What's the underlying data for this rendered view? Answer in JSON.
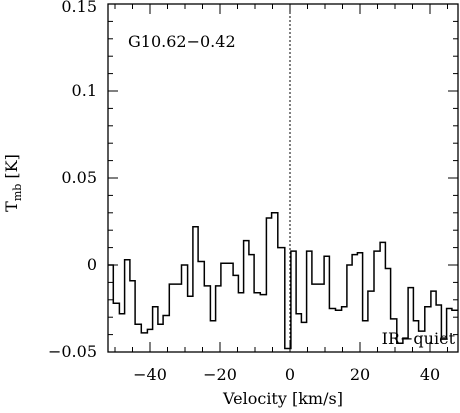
{
  "chart_data": {
    "type": "line",
    "step": true,
    "title": "",
    "xlabel": "Velocity [km/s]",
    "ylabel_main": "T",
    "ylabel_sub": "mb",
    "ylabel_unit": "[K]",
    "xlim": [
      -52,
      48
    ],
    "ylim": [
      -0.05,
      0.15
    ],
    "xticks": [
      -40,
      -20,
      0,
      20,
      40
    ],
    "xtick_labels": [
      "−40",
      "−20",
      "0",
      "20",
      "40"
    ],
    "yticks": [
      -0.05,
      0,
      0.05,
      0.1,
      0.15
    ],
    "ytick_labels": [
      "−0.05",
      "0",
      "0.05",
      "0.1",
      "0.15"
    ],
    "annotations": {
      "source_name": "G10.62−0.42",
      "classification": "IR−quiet"
    },
    "reference_line_x": 0,
    "series": [
      {
        "x": [
          -51.5,
          -49.5,
          -48.0,
          -46.5,
          -45.0,
          -43.5,
          -41.5,
          -40.0,
          -38.5,
          -37.0,
          -35.5,
          -33.5,
          -32.0,
          -30.0,
          -28.5,
          -27.0,
          -25.5,
          -23.5,
          -22.0,
          -20.5,
          -19.0,
          -17.0,
          -15.5,
          -14.0,
          -12.5,
          -11.0,
          -9.5,
          -7.5,
          -6.0,
          -4.5,
          -2.5,
          -0.5,
          1.0,
          2.5,
          4.0,
          5.5,
          7.0,
          9.0,
          10.5,
          12.0,
          14.0,
          15.5,
          17.0,
          18.5,
          20.0,
          21.5,
          23.0,
          25.0,
          26.5,
          28.0,
          29.5,
          31.5,
          33.0,
          34.5,
          36.0,
          37.5,
          39.5,
          41.0,
          42.5,
          44.0,
          45.5,
          47.0
        ],
        "y": [
          0.0,
          -0.022,
          -0.028,
          0.003,
          -0.009,
          -0.034,
          -0.039,
          -0.037,
          -0.024,
          -0.034,
          -0.029,
          -0.011,
          -0.011,
          -0.0,
          -0.018,
          0.022,
          0.002,
          -0.012,
          -0.032,
          -0.012,
          0.001,
          0.001,
          -0.006,
          -0.016,
          0.014,
          0.006,
          -0.016,
          -0.017,
          0.027,
          0.03,
          0.01,
          -0.048,
          0.008,
          -0.028,
          -0.033,
          0.008,
          -0.011,
          -0.011,
          0.005,
          -0.025,
          -0.026,
          -0.024,
          -0.0,
          0.006,
          0.007,
          -0.032,
          -0.015,
          0.008,
          0.013,
          -0.002,
          -0.031,
          -0.045,
          -0.042,
          -0.013,
          -0.032,
          -0.038,
          -0.024,
          -0.015,
          -0.023,
          -0.042,
          -0.025,
          -0.026
        ]
      }
    ]
  }
}
